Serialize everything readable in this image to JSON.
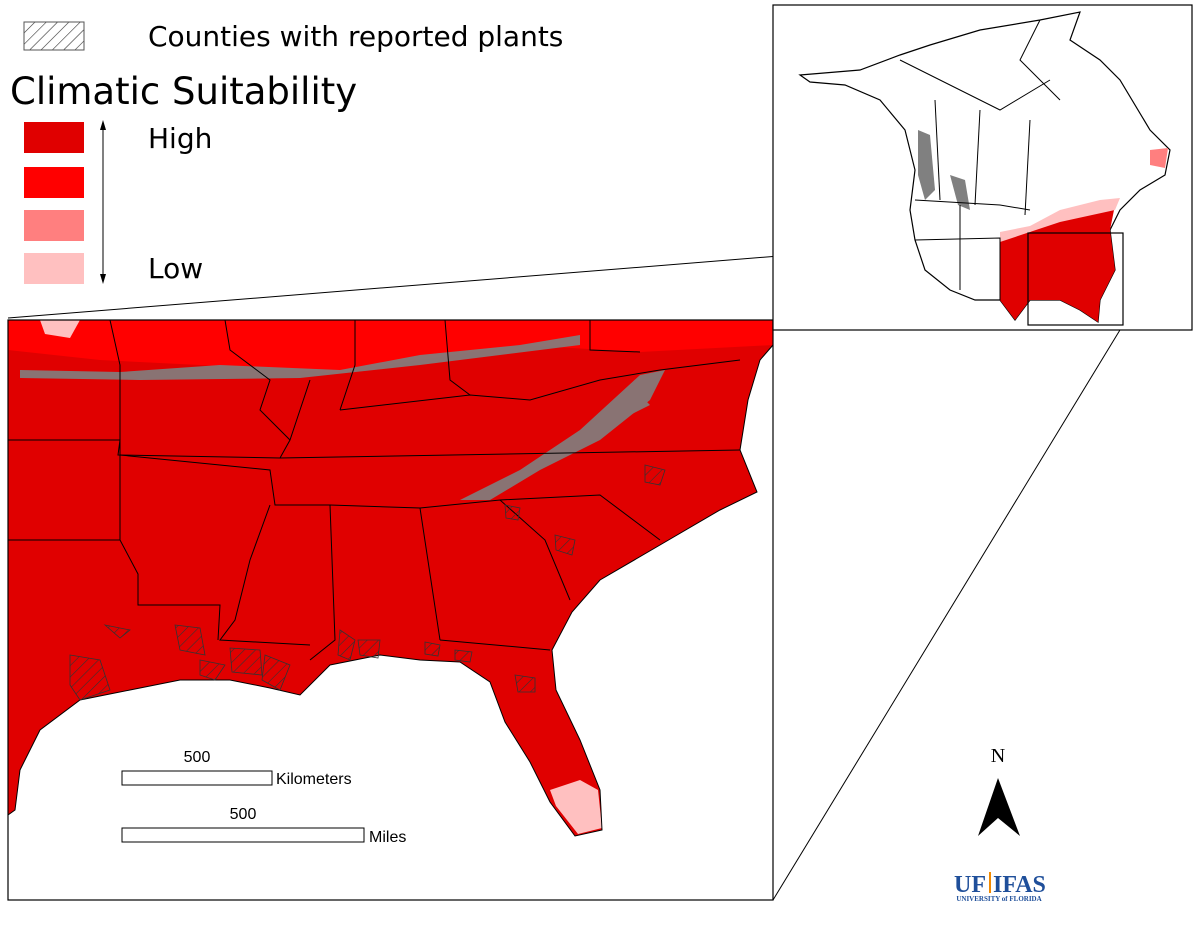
{
  "legend": {
    "hatch_label": "Counties with reported plants",
    "title": "Climatic Suitability",
    "high": "High",
    "low": "Low"
  },
  "scale_bars": [
    {
      "distance": 500,
      "unit": "Kilometers"
    },
    {
      "distance": 500,
      "unit": "Miles"
    }
  ],
  "north_arrow": "N",
  "logo": {
    "left": "UF",
    "right": "IFAS",
    "subtitle": "UNIVERSITY of FLORIDA"
  }
}
